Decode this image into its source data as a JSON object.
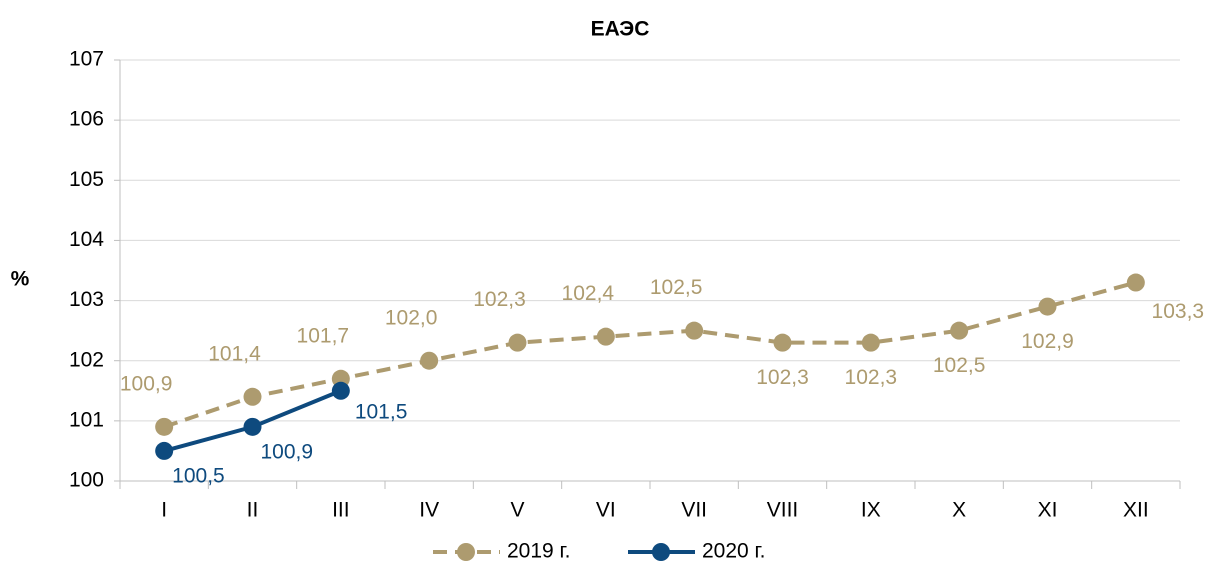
{
  "chart_data": {
    "type": "line",
    "title": "ЕАЭС",
    "ylabel": "%",
    "categories": [
      "I",
      "II",
      "III",
      "IV",
      "V",
      "VI",
      "VII",
      "VIII",
      "IX",
      "X",
      "XI",
      "XII"
    ],
    "series": [
      {
        "name": "2019 г.",
        "color": "#ad9b6f",
        "line_style": "dashed",
        "values": [
          100.9,
          101.4,
          101.7,
          102.0,
          102.3,
          102.4,
          102.5,
          102.3,
          102.3,
          102.5,
          102.9,
          103.3
        ],
        "value_labels": [
          "100,9",
          "101,4",
          "101,7",
          "102,0",
          "102,3",
          "102,4",
          "102,5",
          "102,3",
          "102,3",
          "102,5",
          "102,9",
          "103,3"
        ]
      },
      {
        "name": "2020 г.",
        "color": "#0e4a7e",
        "line_style": "solid",
        "values": [
          100.5,
          100.9,
          101.5,
          null,
          null,
          null,
          null,
          null,
          null,
          null,
          null,
          null
        ],
        "value_labels": [
          "100,5",
          "100,9",
          "101,5",
          null,
          null,
          null,
          null,
          null,
          null,
          null,
          null,
          null
        ]
      }
    ],
    "ylim": [
      100,
      107
    ],
    "yticks": [
      100,
      101,
      102,
      103,
      104,
      105,
      106,
      107
    ],
    "grid": true,
    "legend": "bottom"
  }
}
